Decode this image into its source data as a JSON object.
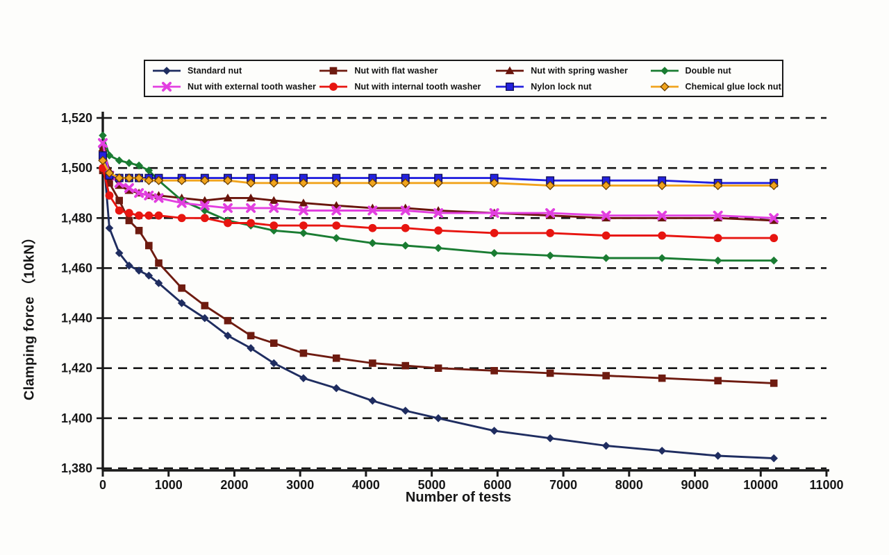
{
  "figure": {
    "background": "#fdfdfb",
    "grid_color": "#151515",
    "axis_color": "#1a1a1a",
    "text_color": "#161616"
  },
  "chart_data": {
    "type": "line",
    "title": "",
    "xlabel": "Number of tests",
    "ylabel": "Clamping force （10kN）",
    "xlim": [
      0,
      11000
    ],
    "ylim": [
      1380,
      1520
    ],
    "grid": "horizontal dashed",
    "legend_position": "top",
    "xticks": [
      0,
      1000,
      2000,
      3000,
      4000,
      5000,
      6000,
      7000,
      8000,
      9000,
      10000,
      11000
    ],
    "xtick_labels": [
      "0",
      "1000",
      "2000",
      "3000",
      "4000",
      "5000",
      "6000",
      "7000",
      "8000",
      "9000",
      "10000",
      "11000"
    ],
    "yticks": [
      1380,
      1400,
      1420,
      1440,
      1460,
      1480,
      1500,
      1520
    ],
    "ytick_labels": [
      "1,380",
      "1,400",
      "1,420",
      "1,440",
      "1,460",
      "1,480",
      "1,500",
      "1,520"
    ],
    "x": [
      0,
      100,
      250,
      400,
      550,
      700,
      850,
      1200,
      1550,
      1900,
      2250,
      2600,
      3050,
      3550,
      4100,
      4600,
      5100,
      5950,
      6800,
      7650,
      8500,
      9350,
      10200
    ],
    "series": [
      {
        "name": "Standard nut",
        "color": "#1f2d60",
        "marker": "diamond",
        "values": [
          1508,
          1476,
          1466,
          1461,
          1459,
          1457,
          1454,
          1446,
          1440,
          1433,
          1428,
          1422,
          1416,
          1412,
          1407,
          1403,
          1400,
          1395,
          1392,
          1389,
          1387,
          1385,
          1384
        ]
      },
      {
        "name": "Nut with flat washer",
        "color": "#6e1b10",
        "marker": "square",
        "values": [
          1499,
          1494,
          1487,
          1479,
          1475,
          1469,
          1462,
          1452,
          1445,
          1439,
          1433,
          1430,
          1426,
          1424,
          1422,
          1421,
          1420,
          1419,
          1418,
          1417,
          1416,
          1415,
          1414
        ]
      },
      {
        "name": "Nut with spring washer",
        "color": "#69140b",
        "marker": "triangle",
        "values": [
          1508,
          1499,
          1493,
          1491,
          1490,
          1489,
          1489,
          1488,
          1487,
          1488,
          1488,
          1487,
          1486,
          1485,
          1484,
          1484,
          1483,
          1482,
          1481,
          1480,
          1480,
          1480,
          1479
        ]
      },
      {
        "name": "Double nut",
        "color": "#1a7c32",
        "marker": "diamond",
        "values": [
          1513,
          1505,
          1503,
          1502,
          1501,
          1499,
          1495,
          1487,
          1483,
          1479,
          1477,
          1475,
          1474,
          1472,
          1470,
          1469,
          1468,
          1466,
          1465,
          1464,
          1464,
          1463,
          1463
        ]
      },
      {
        "name": "Nut with external tooth washer",
        "color": "#e23fe0",
        "marker": "x",
        "values": [
          1510,
          1497,
          1494,
          1492,
          1490,
          1489,
          1488,
          1486,
          1485,
          1484,
          1484,
          1484,
          1483,
          1483,
          1483,
          1483,
          1482,
          1482,
          1482,
          1481,
          1481,
          1481,
          1480
        ]
      },
      {
        "name": "Nut with internal tooth washer",
        "color": "#e71510",
        "marker": "circle",
        "values": [
          1500,
          1489,
          1483,
          1482,
          1481,
          1481,
          1481,
          1480,
          1480,
          1478,
          1478,
          1477,
          1477,
          1477,
          1476,
          1476,
          1475,
          1474,
          1474,
          1473,
          1473,
          1472,
          1472
        ]
      },
      {
        "name": "Nylon lock nut",
        "color": "#2321de",
        "marker": "square",
        "values": [
          1505,
          1497,
          1496,
          1496,
          1496,
          1496,
          1496,
          1496,
          1496,
          1496,
          1496,
          1496,
          1496,
          1496,
          1496,
          1496,
          1496,
          1496,
          1495,
          1495,
          1495,
          1494,
          1494
        ]
      },
      {
        "name": "Chemical glue lock nut",
        "color": "#f1a41d",
        "marker": "diamond",
        "values": [
          1503,
          1498,
          1496,
          1496,
          1496,
          1495,
          1495,
          1495,
          1495,
          1495,
          1494,
          1494,
          1494,
          1494,
          1494,
          1494,
          1494,
          1494,
          1493,
          1493,
          1493,
          1493,
          1493
        ]
      }
    ]
  }
}
